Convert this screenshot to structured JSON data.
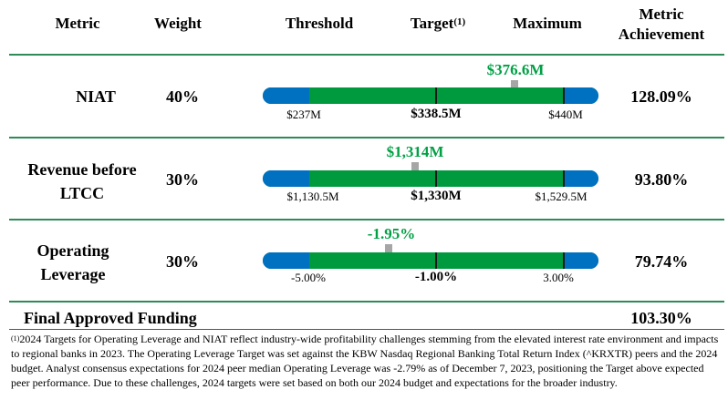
{
  "headers": {
    "metric": "Metric",
    "weight": "Weight",
    "threshold": "Threshold",
    "target": "Target",
    "target_note": "(1)",
    "maximum": "Maximum",
    "achievement_line1": "Metric",
    "achievement_line2": "Achievement"
  },
  "rows": [
    {
      "metric": "NIAT",
      "weight": "40%",
      "actual": "$376.6M",
      "threshold": "$237M",
      "target": "$338.5M",
      "maximum": "$440M",
      "achievement": "128.09%"
    },
    {
      "metric_line1": "Revenue before",
      "metric_line2": "LTCC",
      "weight": "30%",
      "actual": "$1,314M",
      "threshold": "$1,130.5M",
      "target": "$1,330M",
      "maximum": "$1,529.5M",
      "achievement": "93.80%"
    },
    {
      "metric_line1": "Operating",
      "metric_line2": "Leverage",
      "weight": "30%",
      "actual": "-1.95%",
      "threshold": "-5.00%",
      "target": "-1.00%",
      "maximum": "3.00%",
      "achievement": "79.74%"
    }
  ],
  "final": {
    "label": "Final Approved Funding",
    "value": "103.30%"
  },
  "footnote": {
    "marker": "(1)",
    "text": "2024 Targets for Operating Leverage and NIAT reflect industry-wide profitability challenges stemming from the elevated interest rate environment and impacts to regional banks in 2023. The Operating Leverage Target was set against the KBW Nasdaq Regional Banking Total Return Index (^KRXTR) peers and the 2024 budget. Analyst consensus expectations for 2024 peer median Operating Leverage was -2.79% as of December 7, 2023, positioning the Target above expected peer performance. Due to these challenges, 2024 targets were set based on both our 2024 budget and expectations for the broader industry."
  },
  "colors": {
    "green": "#009a3e",
    "blue": "#0070c0",
    "value_green": "#00a045",
    "rule": "#2e8b57",
    "arrow": "#a6a6a6"
  }
}
